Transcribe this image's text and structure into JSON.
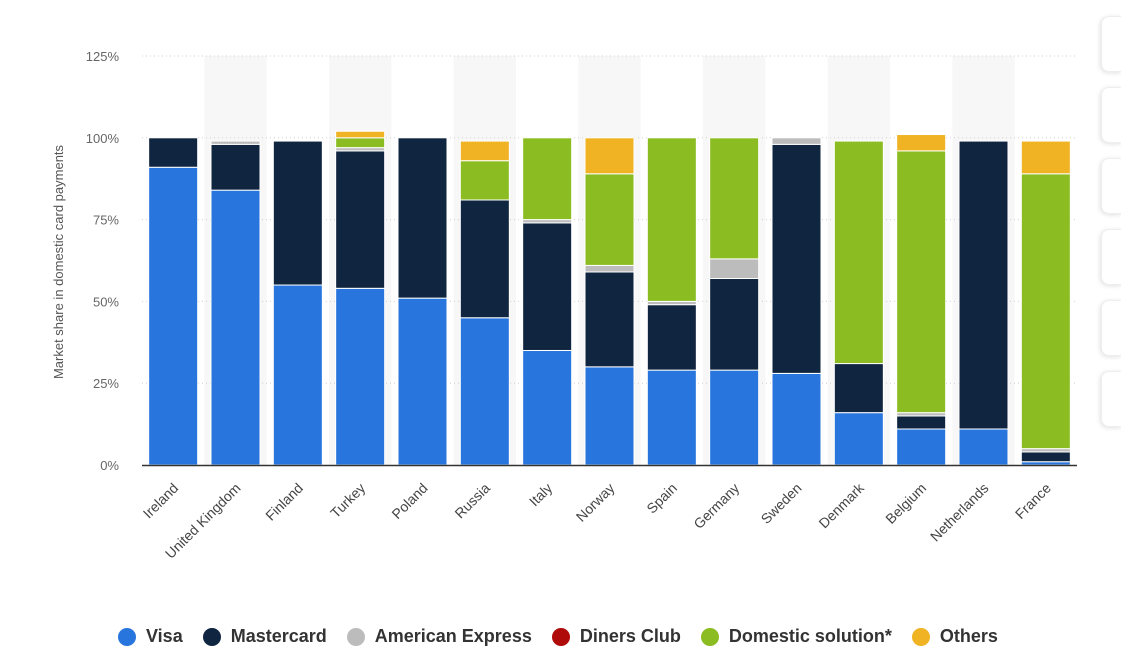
{
  "chart_data": {
    "type": "bar",
    "stacked": true,
    "ylabel": "Market share in domestic card payments",
    "xlabel": "",
    "ylim": [
      0,
      125
    ],
    "yticks": [
      0,
      25,
      50,
      75,
      100,
      125
    ],
    "ytick_labels": [
      "0%",
      "25%",
      "50%",
      "75%",
      "100%",
      "125%"
    ],
    "categories": [
      "Ireland",
      "United Kingdom",
      "Finland",
      "Turkey",
      "Poland",
      "Russia",
      "Italy",
      "Norway",
      "Spain",
      "Germany",
      "Sweden",
      "Denmark",
      "Belgium",
      "Netherlands",
      "France"
    ],
    "series": [
      {
        "name": "Visa",
        "color": "#2876dd",
        "values": [
          91,
          84,
          55,
          54,
          51,
          45,
          35,
          30,
          29,
          29,
          28,
          16,
          11,
          11,
          1
        ]
      },
      {
        "name": "Mastercard",
        "color": "#10253f",
        "values": [
          9,
          14,
          44,
          42,
          49,
          36,
          39,
          29,
          20,
          28,
          70,
          15,
          4,
          88,
          3
        ]
      },
      {
        "name": "American Express",
        "color": "#bcbcbc",
        "values": [
          0,
          1,
          0,
          1,
          0,
          0,
          1,
          2,
          1,
          6,
          2,
          0,
          1,
          0,
          1
        ]
      },
      {
        "name": "Diners Club",
        "color": "#b00b0b",
        "values": [
          0,
          0,
          0,
          0,
          0,
          0,
          0,
          0,
          0,
          0,
          0,
          0,
          0,
          0,
          0
        ]
      },
      {
        "name": "Domestic solution*",
        "color": "#8bbc21",
        "values": [
          0,
          0,
          0,
          3,
          0,
          12,
          25,
          28,
          50,
          37,
          0,
          68,
          80,
          0,
          84
        ]
      },
      {
        "name": "Others",
        "color": "#f0b323",
        "values": [
          0,
          0,
          0,
          2,
          0,
          6,
          0,
          11,
          0,
          0,
          0,
          0,
          5,
          0,
          10
        ]
      }
    ]
  },
  "legend": {
    "items": [
      {
        "label": "Visa",
        "color": "#2876dd"
      },
      {
        "label": "Mastercard",
        "color": "#10253f"
      },
      {
        "label": "American Express",
        "color": "#bcbcbc"
      },
      {
        "label": "Diners Club",
        "color": "#b00b0b"
      },
      {
        "label": "Domestic solution*",
        "color": "#8bbc21"
      },
      {
        "label": "Others",
        "color": "#f0b323"
      }
    ]
  },
  "colors": {
    "band": "#f7f7f7",
    "grid": "#d0d0d0",
    "axis": "#333333"
  }
}
